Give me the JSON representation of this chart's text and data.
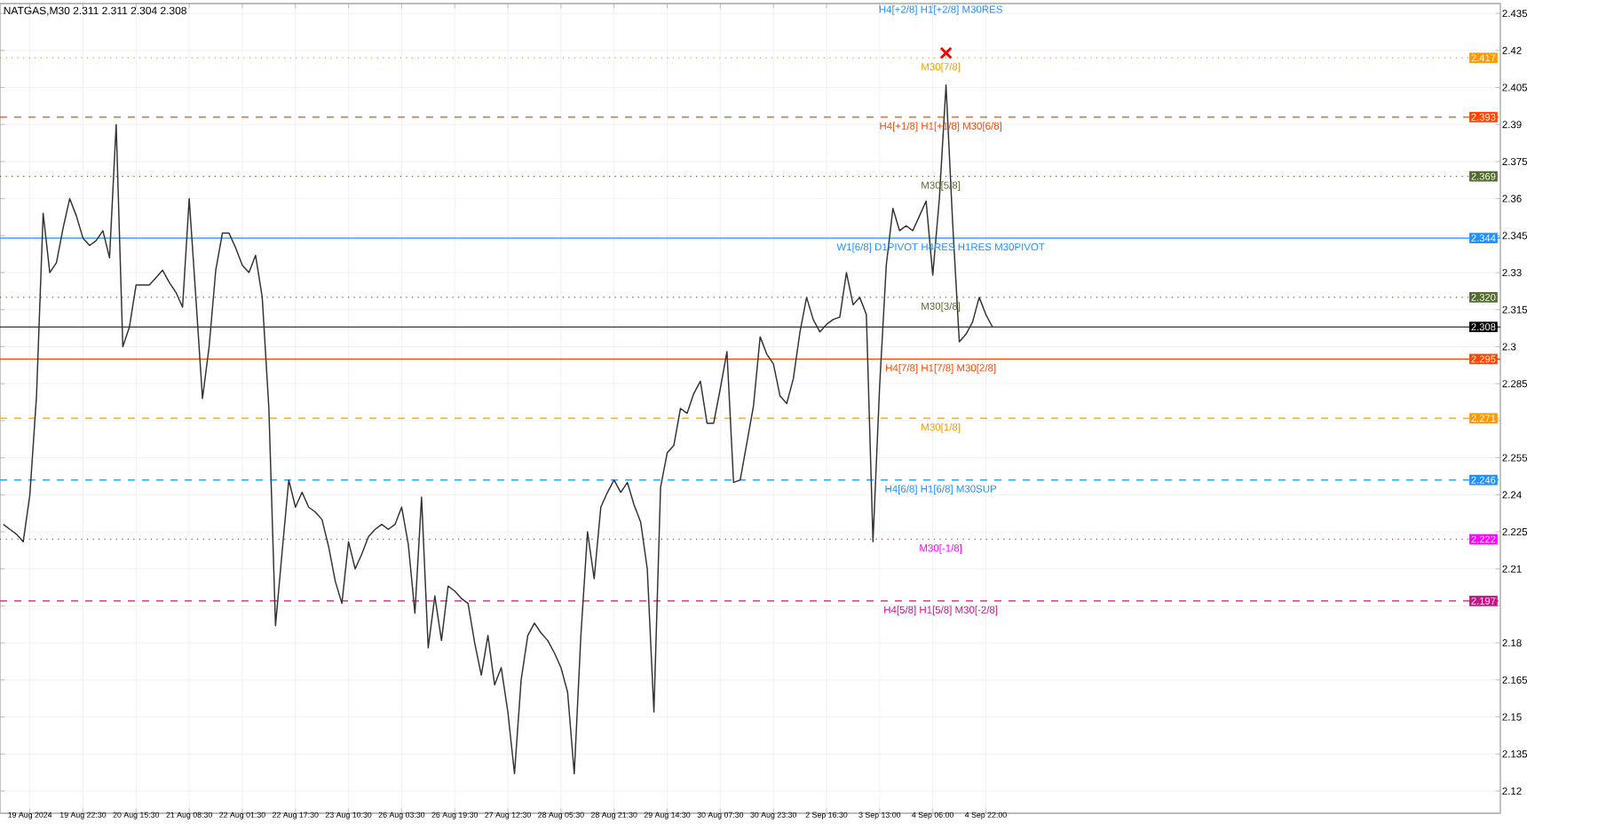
{
  "chart_data": {
    "type": "line",
    "title": "NATGAS,M30  2.311 2.311 2.304 2.308",
    "annotations": [
      "H4[+2/8] H1[+2/8] M30RES",
      {
        "text": "M30[7/8]",
        "y": 2.417
      },
      {
        "text": "H4[+1/8] H1[+1/8] M30[6/8]",
        "y": 2.393
      },
      {
        "text": "M30[5/8]",
        "y": 2.369
      },
      {
        "text": "W1[6/8] D1PIVOT H4RES H1RES M30PIVOT",
        "y": 2.344
      },
      {
        "text": "M30[3/8]",
        "y": 2.32
      },
      {
        "text": "H4[7/8] H1[7/8] M30[2/8]",
        "y": 2.295
      },
      {
        "text": "M30[1/8]",
        "y": 2.271
      },
      {
        "text": "H4[6/8] H1[6/8] M30SUP",
        "y": 2.246
      },
      {
        "text": "M30[-1/8]",
        "y": 2.222
      },
      {
        "text": "H4[5/8] H1[5/8] M30[-2/8]",
        "y": 2.197
      }
    ],
    "categories": [
      null,
      null,
      null,
      null,
      "19 Aug 2024",
      null,
      null,
      null,
      null,
      null,
      null,
      null,
      "19 Aug 22:30",
      null,
      null,
      null,
      null,
      null,
      null,
      null,
      "20 Aug 15:30",
      null,
      null,
      null,
      null,
      null,
      null,
      null,
      "21 Aug 08:30",
      null,
      null,
      null,
      null,
      null,
      null,
      null,
      "22 Aug 01:30",
      null,
      null,
      null,
      null,
      null,
      null,
      null,
      "22 Aug 17:30",
      null,
      null,
      null,
      null,
      null,
      null,
      null,
      "23 Aug 10:30",
      null,
      null,
      null,
      null,
      null,
      null,
      null,
      "26 Aug 03:30",
      null,
      null,
      null,
      null,
      null,
      null,
      null,
      "26 Aug 19:30",
      null,
      null,
      null,
      null,
      null,
      null,
      null,
      "27 Aug 12:30",
      null,
      null,
      null,
      null,
      null,
      null,
      null,
      "28 Aug 05:30",
      null,
      null,
      null,
      null,
      null,
      null,
      null,
      "28 Aug 21:30",
      null,
      null,
      null,
      null,
      null,
      null,
      null,
      "29 Aug 14:30",
      null,
      null,
      null,
      null,
      null,
      null,
      null,
      "30 Aug 07:30",
      null,
      null,
      null,
      null,
      null,
      null,
      null,
      "30 Aug 23:30",
      null,
      null,
      null,
      null,
      null,
      null,
      null,
      "2 Sep 16:30",
      null,
      null,
      null,
      null,
      null,
      null,
      null,
      "3 Sep 13:00",
      null,
      null,
      null,
      null,
      null,
      null,
      null,
      "4 Sep 06:00",
      null,
      null,
      null,
      null,
      null,
      null,
      null,
      "4 Sep 22:00",
      null,
      null,
      null,
      null,
      null,
      null,
      null,
      null,
      null,
      null,
      null,
      null,
      null,
      null,
      null,
      null,
      null,
      null,
      null,
      null,
      null,
      null,
      null,
      null,
      null,
      null,
      null,
      null,
      null,
      null,
      null,
      null,
      null,
      null,
      null,
      null,
      null,
      null,
      null,
      null,
      null,
      null,
      null,
      null,
      null,
      null,
      null,
      null,
      null,
      null,
      null,
      null,
      null,
      null,
      null,
      null,
      null,
      null,
      null,
      null,
      null,
      null,
      null,
      null,
      null,
      null,
      null,
      null,
      null,
      null,
      null,
      null,
      null,
      null,
      null,
      null,
      null
    ],
    "ylim": [
      2.111,
      2.439
    ],
    "yticks": [
      2.12,
      2.135,
      2.15,
      2.165,
      2.18,
      {
        "value": 2.195,
        "label": null
      },
      2.21,
      2.225,
      2.24,
      2.255,
      {
        "value": 2.27,
        "label": null
      },
      2.285,
      2.3,
      2.315,
      2.33,
      2.345,
      2.36,
      2.375,
      2.39,
      2.405,
      2.42,
      2.435
    ],
    "grid": true,
    "ref_lines": [
      {
        "axis": "y",
        "value": 2.417,
        "label": "2.417",
        "color": "#ff9900",
        "line_style": "dotted"
      },
      {
        "axis": "y",
        "value": 2.393,
        "label": "2.393",
        "color": "#ff4500",
        "line_style": "dashed"
      },
      {
        "axis": "y",
        "value": 2.369,
        "label": "2.369",
        "color": "#556b2f",
        "line_style": "dotted"
      },
      {
        "axis": "y",
        "value": 2.344,
        "label": "2.344",
        "color": "#1e90ff",
        "line_style": "solid"
      },
      {
        "axis": "y",
        "value": 2.32,
        "label": "2.320",
        "color": "#556b2f",
        "line_style": "dotted"
      },
      {
        "axis": "y",
        "value": 2.308,
        "label": "2.308",
        "color": "#000000",
        "line_style": "solid"
      },
      {
        "axis": "y",
        "value": 2.295,
        "label": "2.295",
        "color": "#ff4500",
        "line_style": "solid"
      },
      {
        "axis": "y",
        "value": 2.271,
        "label": "2.271",
        "color": "#ff9900",
        "line_style": "dashed"
      },
      {
        "axis": "y",
        "value": 2.246,
        "label": "2.246",
        "color": "#1e90ff",
        "line_style": "dashed"
      },
      {
        "axis": "y",
        "value": 2.222,
        "label": "2.222",
        "color": "#ff00ff",
        "line_style": "dotted"
      },
      {
        "axis": "y",
        "value": 2.197,
        "label": "2.197",
        "color": "#c71585",
        "line_style": "dashed"
      }
    ],
    "series": [
      {
        "color": "#333333",
        "values": [
          2.228,
          2.226,
          2.224,
          2.221,
          2.24,
          2.28,
          2.354,
          2.33,
          2.334,
          2.348,
          2.36,
          2.353,
          2.344,
          2.341,
          2.343,
          2.347,
          2.336,
          2.39,
          2.3,
          2.308,
          2.325,
          2.325,
          2.325,
          2.328,
          2.331,
          2.326,
          2.322,
          2.316,
          2.36,
          2.32,
          2.279,
          2.3,
          2.331,
          2.346,
          2.346,
          2.34,
          2.333,
          2.33,
          2.337,
          2.32,
          2.275,
          2.187,
          2.217,
          2.246,
          2.235,
          2.241,
          2.235,
          2.233,
          2.23,
          2.219,
          2.205,
          2.196,
          2.221,
          2.21,
          2.216,
          2.223,
          2.226,
          2.228,
          2.226,
          2.228,
          2.235,
          2.22,
          2.192,
          2.239,
          2.178,
          2.199,
          2.181,
          2.203,
          2.201,
          2.198,
          2.196,
          2.18,
          2.167,
          2.183,
          2.163,
          2.17,
          2.152,
          2.127,
          2.165,
          2.183,
          2.188,
          2.184,
          2.181,
          2.176,
          2.17,
          2.16,
          2.127,
          2.183,
          2.225,
          2.206,
          2.235,
          2.241,
          2.246,
          2.241,
          2.245,
          2.236,
          2.229,
          2.21,
          2.152,
          2.243,
          2.257,
          2.26,
          2.275,
          2.273,
          2.281,
          2.286,
          2.269,
          2.269,
          2.283,
          2.298,
          2.245,
          2.246,
          2.261,
          2.276,
          2.304,
          2.297,
          2.293,
          2.28,
          2.277,
          2.287,
          2.306,
          2.32,
          2.311,
          2.306,
          2.309,
          2.311,
          2.312,
          2.33,
          2.317,
          2.32,
          2.313,
          2.221,
          2.284,
          2.333,
          2.356,
          2.347,
          2.349,
          2.347,
          2.353,
          2.359,
          2.329,
          2.36,
          2.406,
          2.35,
          2.302,
          2.305,
          2.31,
          2.32,
          2.313,
          2.308,
          null,
          null,
          null,
          null,
          null,
          null,
          null,
          null,
          null,
          null,
          null,
          null,
          null,
          null,
          null,
          null,
          null,
          null,
          null,
          null,
          null,
          null,
          null,
          null,
          null,
          null,
          null,
          null,
          null,
          null,
          null,
          null,
          null,
          null,
          null,
          null,
          null,
          null,
          null,
          null,
          null,
          null,
          null,
          null,
          null,
          null,
          null,
          null,
          null,
          null,
          null,
          null,
          null,
          null,
          null,
          null,
          null,
          null,
          null,
          null,
          null,
          null,
          null,
          null,
          null,
          null,
          null,
          null,
          null,
          null,
          null,
          null,
          null,
          null,
          null,
          null
        ]
      },
      {
        "type": "scatter",
        "marker": "cross",
        "color": "#ff0000",
        "values": [
          null,
          null,
          null,
          null,
          null,
          null,
          null,
          null,
          null,
          null,
          null,
          null,
          null,
          null,
          null,
          null,
          null,
          null,
          null,
          null,
          null,
          null,
          null,
          null,
          null,
          null,
          null,
          null,
          null,
          null,
          null,
          null,
          null,
          null,
          null,
          null,
          null,
          null,
          null,
          null,
          null,
          null,
          null,
          null,
          null,
          null,
          null,
          null,
          null,
          null,
          null,
          null,
          null,
          null,
          null,
          null,
          null,
          null,
          null,
          null,
          null,
          null,
          null,
          null,
          null,
          null,
          null,
          null,
          null,
          null,
          null,
          null,
          null,
          null,
          null,
          null,
          null,
          null,
          null,
          null,
          null,
          null,
          null,
          null,
          null,
          null,
          null,
          null,
          null,
          null,
          null,
          null,
          null,
          null,
          null,
          null,
          null,
          null,
          null,
          null,
          null,
          null,
          null,
          null,
          null,
          null,
          null,
          null,
          null,
          null,
          null,
          null,
          null,
          null,
          null,
          null,
          null,
          null,
          null,
          null,
          null,
          null,
          null,
          null,
          null,
          null,
          null,
          null,
          null,
          null,
          null,
          null,
          null,
          null,
          null,
          null,
          null,
          null,
          null,
          null,
          null,
          null,
          2.419,
          null,
          null,
          null,
          null,
          null,
          null,
          null,
          null,
          null,
          null,
          null,
          null,
          null,
          null,
          null,
          null,
          null,
          null,
          null,
          null,
          null,
          null,
          null,
          null,
          null,
          null,
          null,
          null,
          null,
          null,
          null,
          null,
          null,
          null,
          null,
          null,
          null,
          null,
          null,
          null,
          null,
          null,
          null,
          null,
          null,
          null,
          null,
          null,
          null,
          null,
          null,
          null,
          null,
          null,
          null,
          null,
          null,
          null,
          null,
          null,
          null,
          null,
          null,
          null,
          null,
          null,
          null,
          null,
          null,
          null,
          null,
          null,
          null,
          null,
          null,
          null,
          null,
          null,
          null,
          null,
          null,
          null,
          null
        ]
      }
    ]
  }
}
